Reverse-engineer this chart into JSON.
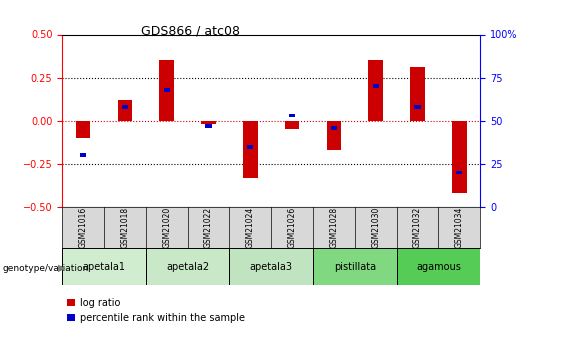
{
  "title": "GDS866 / atc08",
  "samples": [
    "GSM21016",
    "GSM21018",
    "GSM21020",
    "GSM21022",
    "GSM21024",
    "GSM21026",
    "GSM21028",
    "GSM21030",
    "GSM21032",
    "GSM21034"
  ],
  "log_ratio": [
    -0.1,
    0.12,
    0.35,
    -0.02,
    -0.33,
    -0.05,
    -0.17,
    0.35,
    0.31,
    -0.42
  ],
  "percentile_rank": [
    30,
    58,
    68,
    47,
    35,
    53,
    46,
    70,
    58,
    20
  ],
  "groups": [
    {
      "name": "apetala1",
      "indices": [
        0,
        1
      ],
      "color": "#d0edd0"
    },
    {
      "name": "apetala2",
      "indices": [
        2,
        3
      ],
      "color": "#c8e8c8"
    },
    {
      "name": "apetala3",
      "indices": [
        4,
        5
      ],
      "color": "#c0e4c0"
    },
    {
      "name": "pistillata",
      "indices": [
        6,
        7
      ],
      "color": "#80d880"
    },
    {
      "name": "agamous",
      "indices": [
        8,
        9
      ],
      "color": "#55cc55"
    }
  ],
  "ylim_left": [
    -0.5,
    0.5
  ],
  "ylim_right": [
    0,
    100
  ],
  "yticks_left": [
    -0.5,
    -0.25,
    0,
    0.25,
    0.5
  ],
  "yticks_right": [
    0,
    25,
    50,
    75,
    100
  ],
  "bar_color_red": "#cc0000",
  "bar_color_blue": "#0000cc",
  "bar_width": 0.35,
  "blue_bar_width": 0.15,
  "zero_line_color": "#cc0000",
  "dotted_line_color": "#000000",
  "background_label": "#d8d8d8",
  "genotype_label": "genotype/variation"
}
